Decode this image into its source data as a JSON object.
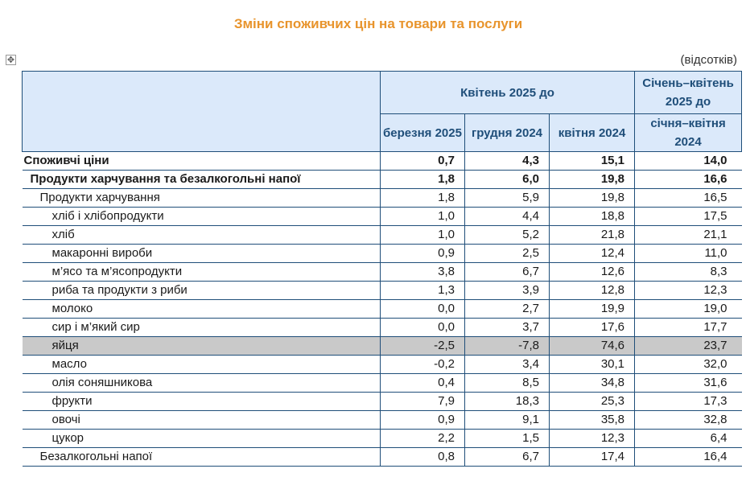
{
  "title": "Зміни споживчих цін на товари та послуги",
  "unit": "(відсотків)",
  "move_handle_icon": "move-arrows-icon",
  "header": {
    "group1": "Квітень 2025 до",
    "group2": "Січень–квітень 2025 до",
    "col1": "березня 2025",
    "col2": "грудня 2024",
    "col3": "квітня 2024",
    "col4": "січня–квітня 2024"
  },
  "rows": [
    {
      "label": "Споживчі ціни",
      "level": 0,
      "values": [
        "0,7",
        "4,3",
        "15,1",
        "14,0"
      ]
    },
    {
      "label": "Продукти харчування та безалкогольні напої",
      "level": 1,
      "values": [
        "1,8",
        "6,0",
        "19,8",
        "16,6"
      ]
    },
    {
      "label": "Продукти харчування",
      "level": 2,
      "values": [
        "1,8",
        "5,9",
        "19,8",
        "16,5"
      ]
    },
    {
      "label": "хліб і хлібопродукти",
      "level": 3,
      "values": [
        "1,0",
        "4,4",
        "18,8",
        "17,5"
      ]
    },
    {
      "label": "хліб",
      "level": 3,
      "values": [
        "1,0",
        "5,2",
        "21,8",
        "21,1"
      ]
    },
    {
      "label": "макаронні вироби",
      "level": 3,
      "values": [
        "0,9",
        "2,5",
        "12,4",
        "11,0"
      ]
    },
    {
      "label": "м’ясо та м’ясопродукти",
      "level": 3,
      "values": [
        "3,8",
        "6,7",
        "12,6",
        "8,3"
      ]
    },
    {
      "label": "риба та продукти з риби",
      "level": 3,
      "values": [
        "1,3",
        "3,9",
        "12,8",
        "12,3"
      ]
    },
    {
      "label": "молоко",
      "level": 3,
      "values": [
        "0,0",
        "2,7",
        "19,9",
        "19,0"
      ]
    },
    {
      "label": "сир і м’який сир",
      "level": 3,
      "values": [
        "0,0",
        "3,7",
        "17,6",
        "17,7"
      ]
    },
    {
      "label": "яйця",
      "level": 3,
      "highlight": true,
      "values": [
        "-2,5",
        "-7,8",
        "74,6",
        "23,7"
      ]
    },
    {
      "label": "масло",
      "level": 3,
      "values": [
        "-0,2",
        "3,4",
        "30,1",
        "32,0"
      ]
    },
    {
      "label": "олія соняшникова",
      "level": 3,
      "values": [
        "0,4",
        "8,5",
        "34,8",
        "31,6"
      ]
    },
    {
      "label": "фрукти",
      "level": 3,
      "values": [
        "7,9",
        "18,3",
        "25,3",
        "17,3"
      ]
    },
    {
      "label": "овочі",
      "level": 3,
      "values": [
        "0,9",
        "9,1",
        "35,8",
        "32,8"
      ]
    },
    {
      "label": "цукор",
      "level": 3,
      "values": [
        "2,2",
        "1,5",
        "12,3",
        "6,4"
      ]
    },
    {
      "label": "Безалкогольні напої",
      "level": 2,
      "values": [
        "0,8",
        "6,7",
        "17,4",
        "16,4"
      ]
    }
  ]
}
